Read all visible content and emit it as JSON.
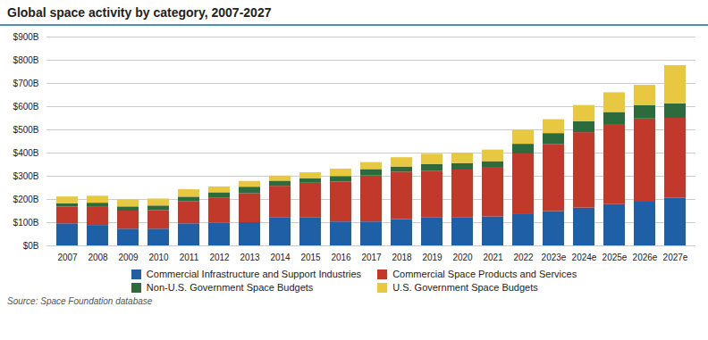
{
  "chart_data": {
    "type": "bar",
    "stacked": true,
    "title": "Global space activity by category, 2007-2027",
    "source": "Source: Space Foundation database",
    "categories": [
      "2007",
      "2008",
      "2009",
      "2010",
      "2011",
      "2012",
      "2013",
      "2014",
      "2015",
      "2016",
      "2017",
      "2018",
      "2019",
      "2020",
      "2021",
      "2022",
      "2023e",
      "2024e",
      "2025e",
      "2026e",
      "2027e"
    ],
    "series": [
      {
        "name": "Commercial Infrastructure and Support Industries",
        "color": "#1f5fa6",
        "values": [
          95,
          88,
          72,
          72,
          95,
          97,
          100,
          122,
          120,
          103,
          103,
          113,
          122,
          122,
          125,
          138,
          148,
          163,
          178,
          192,
          205
        ]
      },
      {
        "name": "Commercial Space Products and Services",
        "color": "#c0392b",
        "values": [
          72,
          78,
          78,
          80,
          95,
          110,
          125,
          135,
          150,
          172,
          198,
          205,
          200,
          205,
          210,
          258,
          288,
          325,
          345,
          355,
          345
        ]
      },
      {
        "name": "Non-U.S. Government Space Budgets",
        "color": "#2d6b3c",
        "values": [
          14,
          18,
          18,
          20,
          20,
          22,
          28,
          22,
          20,
          24,
          28,
          22,
          28,
          28,
          28,
          42,
          48,
          47,
          52,
          57,
          62
        ]
      },
      {
        "name": "U.S. Government Space Budgets",
        "color": "#e8c840",
        "values": [
          30,
          30,
          30,
          30,
          32,
          25,
          25,
          22,
          25,
          32,
          30,
          40,
          45,
          45,
          50,
          60,
          60,
          70,
          85,
          88,
          165
        ]
      }
    ],
    "ylim": [
      0,
      900
    ],
    "yticks": [
      {
        "value": 0,
        "label": "$0B"
      },
      {
        "value": 100,
        "label": "$100B"
      },
      {
        "value": 200,
        "label": "$200B"
      },
      {
        "value": 300,
        "label": "$300B"
      },
      {
        "value": 400,
        "label": "$400B"
      },
      {
        "value": 500,
        "label": "$500B"
      },
      {
        "value": 600,
        "label": "$600B"
      },
      {
        "value": 700,
        "label": "$700B"
      },
      {
        "value": 800,
        "label": "$800B"
      },
      {
        "value": 900,
        "label": "$900B"
      }
    ],
    "grid": true,
    "legend": "bottom"
  }
}
